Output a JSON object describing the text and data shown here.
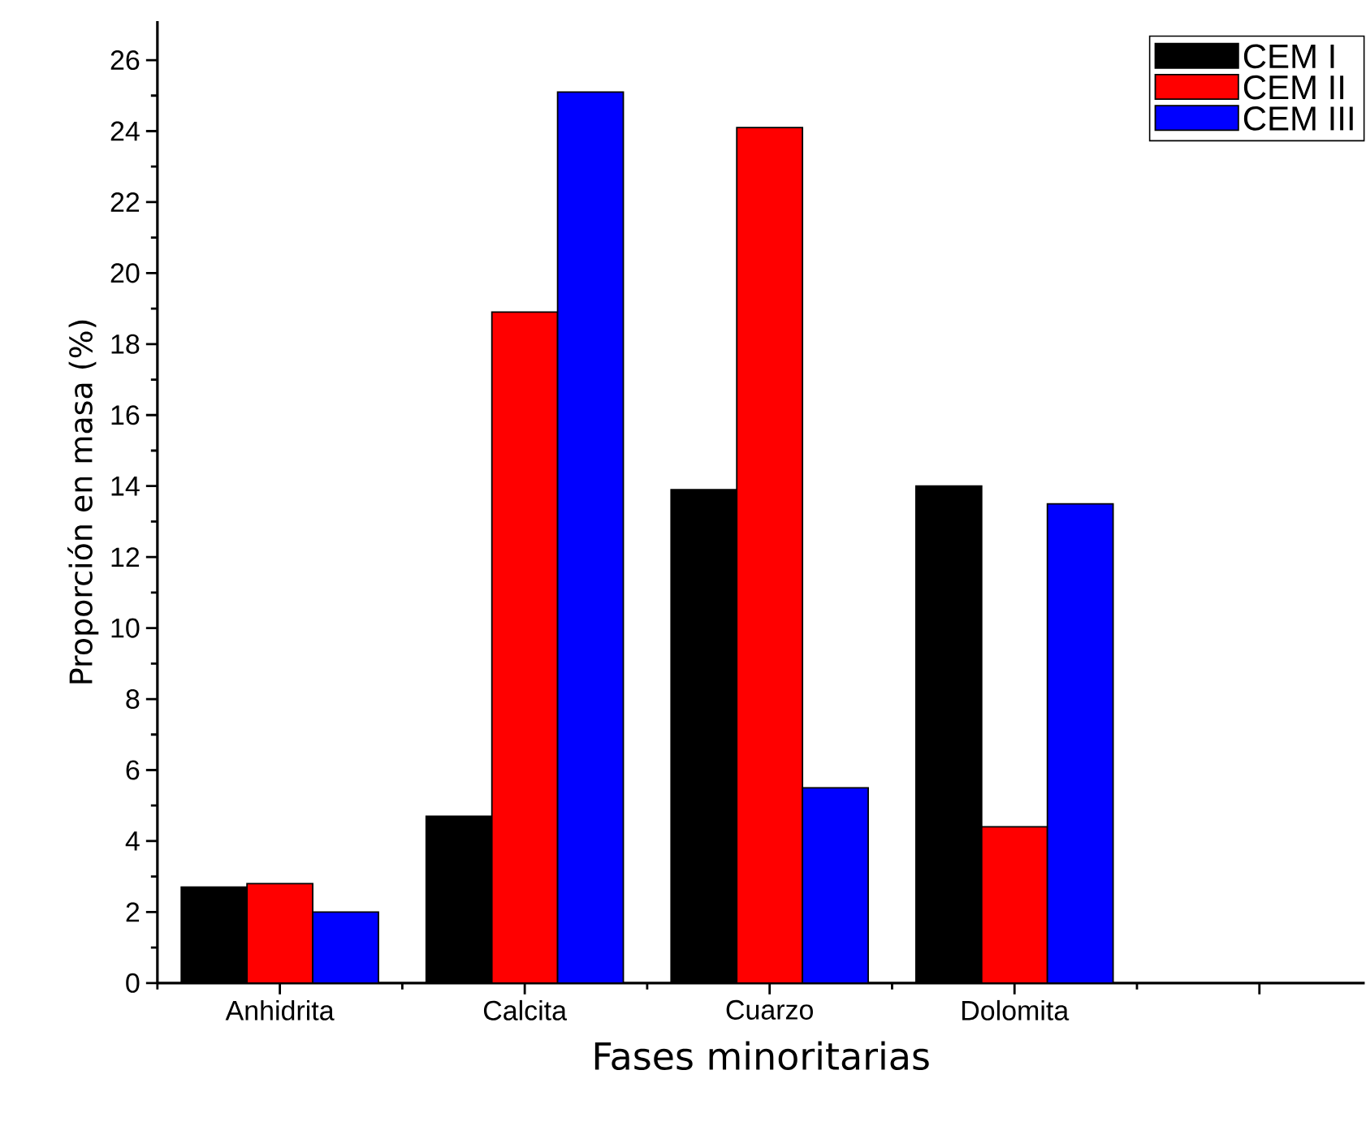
{
  "chart_data": {
    "type": "bar",
    "xlabel": "Fases minoritarias",
    "ylabel": "Proporción en masa (%)",
    "categories": [
      "Anhidrita",
      "Calcita",
      "Cuarzo",
      "Dolomita",
      null
    ],
    "series": [
      {
        "name": "CEM I",
        "color": "#000000",
        "values": [
          2.7,
          4.7,
          13.9,
          14.0,
          null
        ]
      },
      {
        "name": "CEM II",
        "color": "#ff0000",
        "values": [
          2.8,
          18.9,
          24.1,
          4.4,
          null
        ]
      },
      {
        "name": "CEM III",
        "color": "#0000ff",
        "values": [
          2.0,
          25.1,
          5.5,
          13.5,
          null
        ]
      }
    ],
    "ylim": [
      0,
      27.1
    ],
    "yticks": [
      0,
      2,
      4,
      6,
      8,
      10,
      12,
      14,
      16,
      18,
      20,
      22,
      24,
      26
    ],
    "grid": false,
    "legend": "top right"
  }
}
